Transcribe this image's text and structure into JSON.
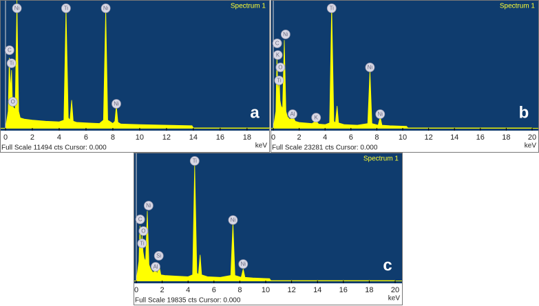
{
  "chart_data": [
    {
      "type": "area",
      "title": "Spectrum 1",
      "panel_label": "a",
      "color": "#ffff00",
      "background": "#0f3c6e",
      "x": [
        0,
        0.2,
        0.28,
        0.36,
        0.45,
        0.52,
        0.6,
        0.72,
        0.85,
        0.98,
        1.1,
        1.4,
        2,
        3,
        4,
        4.35,
        4.51,
        4.68,
        4.8,
        4.93,
        5.05,
        5.3,
        6,
        7,
        7.3,
        7.47,
        7.62,
        8.0,
        8.15,
        8.26,
        8.38,
        8.6,
        10,
        12,
        13.9,
        14,
        19.7
      ],
      "values": [
        0,
        1500,
        6300,
        3500,
        5200,
        2200,
        1800,
        1700,
        11494,
        1500,
        900,
        800,
        700,
        600,
        550,
        700,
        10800,
        900,
        700,
        2500,
        600,
        500,
        450,
        400,
        700,
        10700,
        700,
        400,
        600,
        2000,
        500,
        350,
        300,
        250,
        200,
        0,
        0
      ],
      "xlim": [
        0,
        19.7
      ],
      "xticks": [
        0,
        2,
        4,
        6,
        8,
        10,
        12,
        14,
        16,
        18
      ],
      "ylim": [
        0,
        11494
      ],
      "x_label": "keV",
      "footer": "Full Scale 11494 cts Cursor: 0.000",
      "peaks": [
        {
          "label": "Ni",
          "x": 0.85,
          "y": 10752
        },
        {
          "label": "Ti",
          "x": 4.51,
          "y": 10752
        },
        {
          "label": "Ni",
          "x": 7.47,
          "y": 10752
        },
        {
          "label": "C",
          "x": 0.3,
          "y": 6983
        },
        {
          "label": "Ti",
          "x": 0.45,
          "y": 5809
        },
        {
          "label": "O",
          "x": 0.55,
          "y": 2348
        },
        {
          "label": "Ni",
          "x": 8.26,
          "y": 2163
        }
      ]
    },
    {
      "type": "area",
      "title": "Spectrum 1",
      "panel_label": "b",
      "color": "#ffff00",
      "background": "#0f3c6e",
      "x": [
        0,
        0.2,
        0.28,
        0.36,
        0.45,
        0.52,
        0.6,
        0.72,
        0.85,
        0.98,
        1.1,
        1.3,
        1.49,
        1.7,
        2,
        3,
        3.31,
        3.5,
        4,
        4.35,
        4.51,
        4.68,
        4.8,
        4.93,
        5.05,
        5.5,
        6.5,
        7.3,
        7.47,
        7.62,
        8.1,
        8.26,
        8.4,
        9,
        10.3,
        10.4,
        20
      ],
      "values": [
        0,
        3000,
        13000,
        6000,
        9000,
        5000,
        4000,
        3500,
        16000,
        3000,
        2000,
        1500,
        2200,
        1200,
        1000,
        800,
        1300,
        700,
        600,
        900,
        22500,
        1200,
        900,
        4000,
        900,
        600,
        500,
        800,
        10500,
        800,
        500,
        2000,
        500,
        400,
        300,
        0,
        0
      ],
      "xlim": [
        0,
        20
      ],
      "xticks": [
        0,
        2,
        4,
        6,
        8,
        10,
        12,
        14,
        16,
        18,
        20
      ],
      "ylim": [
        0,
        23281
      ],
      "x_label": "keV",
      "footer": "Full Scale 23281 cts Cursor: 0.000",
      "peaks": [
        {
          "label": "Ti",
          "x": 4.51,
          "y": 21779
        },
        {
          "label": "Ni",
          "x": 0.95,
          "y": 17023
        },
        {
          "label": "C",
          "x": 0.3,
          "y": 15397
        },
        {
          "label": "K",
          "x": 0.35,
          "y": 13268
        },
        {
          "label": "O",
          "x": 0.55,
          "y": 11015
        },
        {
          "label": "Ti",
          "x": 0.45,
          "y": 8637
        },
        {
          "label": "Al",
          "x": 1.49,
          "y": 2503
        },
        {
          "label": "K",
          "x": 3.31,
          "y": 1877
        },
        {
          "label": "Ni",
          "x": 7.47,
          "y": 11015
        },
        {
          "label": "Ni",
          "x": 8.26,
          "y": 2503
        }
      ]
    },
    {
      "type": "area",
      "title": "Spectrum 1",
      "panel_label": "c",
      "color": "#ffff00",
      "background": "#0f3c6e",
      "x": [
        0,
        0.2,
        0.28,
        0.36,
        0.45,
        0.52,
        0.6,
        0.72,
        0.85,
        0.98,
        1.1,
        1.3,
        1.49,
        1.62,
        1.74,
        1.9,
        2.2,
        3,
        4,
        4.35,
        4.51,
        4.68,
        4.8,
        4.93,
        5.05,
        5.5,
        6.5,
        7.3,
        7.47,
        7.62,
        8.1,
        8.26,
        8.4,
        9,
        10.3,
        10.4,
        20
      ],
      "values": [
        0,
        3000,
        8500,
        5000,
        7000,
        4500,
        3500,
        3000,
        10800,
        2500,
        1800,
        1200,
        1700,
        1000,
        2600,
        900,
        800,
        700,
        600,
        900,
        18000,
        1200,
        900,
        4000,
        900,
        600,
        500,
        800,
        9000,
        800,
        500,
        1800,
        500,
        400,
        300,
        0,
        0
      ],
      "xlim": [
        0,
        20
      ],
      "xticks": [
        0,
        2,
        4,
        6,
        8,
        10,
        12,
        14,
        16,
        18,
        20
      ],
      "ylim": [
        0,
        19835
      ],
      "x_label": "keV",
      "footer": "Full Scale 19835 cts Cursor: 0.000",
      "peaks": [
        {
          "label": "Ti",
          "x": 4.51,
          "y": 18555
        },
        {
          "label": "Ni",
          "x": 0.95,
          "y": 11624
        },
        {
          "label": "C",
          "x": 0.3,
          "y": 9491
        },
        {
          "label": "O",
          "x": 0.55,
          "y": 7678
        },
        {
          "label": "Ti",
          "x": 0.45,
          "y": 5759
        },
        {
          "label": "Si",
          "x": 1.74,
          "y": 3839
        },
        {
          "label": "Al",
          "x": 1.49,
          "y": 2133
        },
        {
          "label": "Ni",
          "x": 7.47,
          "y": 9385
        },
        {
          "label": "Ni",
          "x": 8.26,
          "y": 2560
        }
      ]
    }
  ]
}
